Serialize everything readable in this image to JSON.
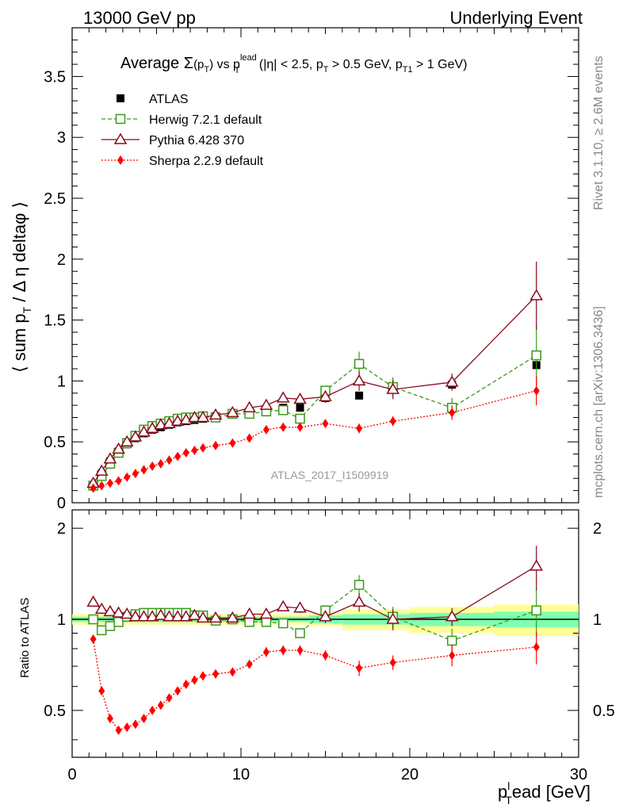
{
  "header": {
    "left": "13000 GeV pp",
    "right": "Underlying Event"
  },
  "side_labels": {
    "rivet": "Rivet 3.1.10, ≥ 2.6M events",
    "mcplots": "mcplots.cern.ch [arXiv:1306.3436]"
  },
  "watermark": "ATLAS_2017_I1509919",
  "plot_title": {
    "prefix": "Average ",
    "sigma": "Σ",
    "ppt": "(p",
    "ppt_sub": "T",
    "ppt_close": ")",
    "vs": " vs p",
    "vs_sup": "lead",
    "vs_sub": "T",
    "cuts1": " (|η| < 2.5, p",
    "cuts1_sub": "T",
    "cuts2": " > 0.5 GeV, p",
    "cuts2_sub": "T1",
    "cuts3": " > 1 GeV)"
  },
  "axes": {
    "ylabel_main": "⟨ sum p",
    "ylabel_main_sub": "T",
    "ylabel_main_rest": " / Δ η deltaφ ⟩",
    "ylabel_ratio": "Ratio to ATLAS",
    "xlabel": "p",
    "xlabel_sup": "l",
    "xlabel_sub": "T",
    "xlabel_rest": "ead [GeV]"
  },
  "legend": [
    {
      "key": "atlas",
      "label": "ATLAS"
    },
    {
      "key": "herwig",
      "label": "Herwig 7.2.1 default"
    },
    {
      "key": "pythia",
      "label": "Pythia 6.428 370"
    },
    {
      "key": "sherpa",
      "label": "Sherpa 2.2.9 default"
    }
  ],
  "colors": {
    "atlas": "#000000",
    "herwig": "#3a9a1a",
    "pythia": "#8b0a1e",
    "sherpa": "#ff0000",
    "band_inner": "#7fffb0",
    "band_outer": "#ffff99"
  },
  "chart_data": [
    {
      "type": "scatter",
      "panel": "main",
      "xlim": [
        0,
        30
      ],
      "ylim": [
        0,
        3.9
      ],
      "x_ticks": [
        "0",
        "10",
        "20",
        "30"
      ],
      "y_ticks": [
        "0",
        "0.5",
        "1",
        "1.5",
        "2",
        "2.5",
        "3",
        "3.5"
      ],
      "x": [
        1.25,
        1.75,
        2.25,
        2.75,
        3.25,
        3.75,
        4.25,
        4.75,
        5.25,
        5.75,
        6.25,
        6.75,
        7.25,
        7.75,
        8.5,
        9.5,
        10.5,
        11.5,
        12.5,
        13.5,
        15.0,
        17.0,
        19.0,
        22.5,
        27.5
      ],
      "series": [
        {
          "name": "ATLAS",
          "key": "atlas",
          "values": [
            0.14,
            0.24,
            0.34,
            0.42,
            0.48,
            0.53,
            0.57,
            0.6,
            0.62,
            0.64,
            0.66,
            0.67,
            0.68,
            0.69,
            0.71,
            0.73,
            0.75,
            0.77,
            0.78,
            0.78,
            0.86,
            0.88,
            0.93,
            0.97,
            1.13
          ]
        },
        {
          "name": "Herwig 7.2.1 default",
          "key": "herwig",
          "values": [
            0.14,
            0.22,
            0.32,
            0.41,
            0.49,
            0.55,
            0.6,
            0.63,
            0.65,
            0.67,
            0.69,
            0.7,
            0.7,
            0.71,
            0.7,
            0.73,
            0.73,
            0.75,
            0.76,
            0.69,
            0.92,
            1.14,
            0.95,
            0.78,
            1.21
          ],
          "err": [
            0.01,
            0.01,
            0.01,
            0.01,
            0.01,
            0.01,
            0.01,
            0.01,
            0.01,
            0.01,
            0.01,
            0.01,
            0.01,
            0.01,
            0.01,
            0.02,
            0.02,
            0.02,
            0.02,
            0.03,
            0.04,
            0.1,
            0.08,
            0.08,
            0.25
          ]
        },
        {
          "name": "Pythia 6.428 370",
          "key": "pythia",
          "values": [
            0.16,
            0.26,
            0.36,
            0.44,
            0.5,
            0.54,
            0.58,
            0.61,
            0.64,
            0.65,
            0.67,
            0.68,
            0.7,
            0.7,
            0.72,
            0.74,
            0.78,
            0.8,
            0.86,
            0.85,
            0.87,
            1.0,
            0.93,
            0.99,
            1.7
          ],
          "err": [
            0.01,
            0.01,
            0.01,
            0.01,
            0.01,
            0.01,
            0.01,
            0.01,
            0.01,
            0.01,
            0.01,
            0.01,
            0.01,
            0.01,
            0.01,
            0.02,
            0.02,
            0.03,
            0.03,
            0.04,
            0.05,
            0.08,
            0.08,
            0.07,
            0.28
          ]
        },
        {
          "name": "Sherpa 2.2.9 default",
          "key": "sherpa",
          "values": [
            0.12,
            0.14,
            0.16,
            0.18,
            0.21,
            0.24,
            0.27,
            0.3,
            0.32,
            0.35,
            0.38,
            0.41,
            0.43,
            0.45,
            0.47,
            0.49,
            0.53,
            0.6,
            0.62,
            0.62,
            0.65,
            0.61,
            0.67,
            0.74,
            0.92
          ],
          "err": [
            0.01,
            0.01,
            0.01,
            0.01,
            0.01,
            0.01,
            0.01,
            0.01,
            0.01,
            0.01,
            0.01,
            0.01,
            0.01,
            0.01,
            0.01,
            0.02,
            0.02,
            0.03,
            0.03,
            0.03,
            0.03,
            0.04,
            0.04,
            0.06,
            0.12
          ]
        }
      ]
    },
    {
      "type": "scatter",
      "panel": "ratio",
      "xlim": [
        0,
        30
      ],
      "ylim": [
        0.35,
        2.3
      ],
      "y_ticks": [
        "0.5",
        "1",
        "2"
      ],
      "band": {
        "x_edges": [
          0,
          14,
          16,
          18,
          20,
          25,
          30
        ],
        "inner": [
          0.02,
          0.03,
          0.04,
          0.04,
          0.05,
          0.06
        ],
        "outer": [
          0.04,
          0.05,
          0.08,
          0.08,
          0.1,
          0.12
        ]
      },
      "x": [
        1.25,
        1.75,
        2.25,
        2.75,
        3.25,
        3.75,
        4.25,
        4.75,
        5.25,
        5.75,
        6.25,
        6.75,
        7.25,
        7.75,
        8.5,
        9.5,
        10.5,
        11.5,
        12.5,
        13.5,
        15.0,
        17.0,
        19.0,
        22.5,
        27.5
      ],
      "series": [
        {
          "name": "Herwig 7.2.1 default",
          "key": "herwig",
          "values": [
            1.0,
            0.92,
            0.95,
            0.98,
            1.02,
            1.04,
            1.05,
            1.05,
            1.05,
            1.05,
            1.05,
            1.05,
            1.03,
            1.03,
            0.99,
            1.0,
            0.98,
            0.98,
            0.97,
            0.9,
            1.07,
            1.3,
            1.02,
            0.85,
            1.07
          ],
          "err": [
            0.01,
            0.01,
            0.01,
            0.01,
            0.01,
            0.01,
            0.01,
            0.01,
            0.01,
            0.01,
            0.01,
            0.01,
            0.01,
            0.01,
            0.01,
            0.02,
            0.02,
            0.02,
            0.02,
            0.03,
            0.04,
            0.1,
            0.08,
            0.08,
            0.2
          ]
        },
        {
          "name": "Pythia 6.428 370",
          "key": "pythia",
          "values": [
            1.14,
            1.08,
            1.06,
            1.05,
            1.04,
            1.02,
            1.02,
            1.02,
            1.03,
            1.02,
            1.02,
            1.02,
            1.03,
            1.01,
            1.01,
            1.01,
            1.04,
            1.04,
            1.1,
            1.09,
            1.02,
            1.14,
            1.0,
            1.02,
            1.5
          ],
          "err": [
            0.01,
            0.01,
            0.01,
            0.01,
            0.01,
            0.01,
            0.01,
            0.01,
            0.01,
            0.01,
            0.01,
            0.01,
            0.01,
            0.01,
            0.01,
            0.02,
            0.02,
            0.03,
            0.03,
            0.04,
            0.05,
            0.08,
            0.08,
            0.07,
            0.25
          ]
        },
        {
          "name": "Sherpa 2.2.9 default",
          "key": "sherpa",
          "values": [
            0.86,
            0.58,
            0.47,
            0.43,
            0.44,
            0.45,
            0.47,
            0.5,
            0.52,
            0.55,
            0.58,
            0.61,
            0.63,
            0.65,
            0.66,
            0.67,
            0.71,
            0.78,
            0.79,
            0.79,
            0.76,
            0.69,
            0.72,
            0.76,
            0.81
          ],
          "err": [
            0.01,
            0.01,
            0.01,
            0.01,
            0.01,
            0.01,
            0.01,
            0.01,
            0.01,
            0.01,
            0.01,
            0.01,
            0.01,
            0.01,
            0.01,
            0.02,
            0.02,
            0.03,
            0.03,
            0.03,
            0.03,
            0.04,
            0.04,
            0.06,
            0.1
          ]
        }
      ]
    }
  ]
}
